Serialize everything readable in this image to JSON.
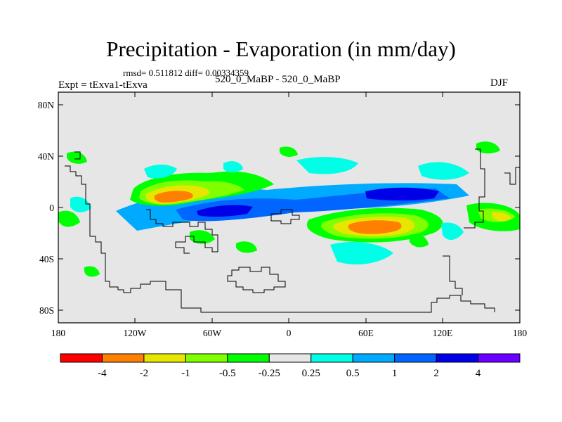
{
  "title": "Precipitation - Evaporation (in mm/day)",
  "stats": "rmsd= 0.511812 diff= 0.00334359",
  "left_label": "Expt = tExva1-tExva",
  "center_label": "520_0_MaBP - 520_0_MaBP",
  "season": "DJF",
  "lat_labels": [
    "80N",
    "40N",
    "0",
    "40S",
    "80S"
  ],
  "lon_labels": [
    "180",
    "120W",
    "60W",
    "0",
    "60E",
    "120E",
    "180"
  ],
  "colorbar": {
    "colors": [
      "#ff0000",
      "#ff8000",
      "#e6e600",
      "#80ff00",
      "#00ff00",
      "#e6e6e6",
      "#00ffe6",
      "#00aaff",
      "#0066ff",
      "#0000e6",
      "#6a00ff"
    ],
    "labels": [
      "-4",
      "-2",
      "-1",
      "-0.5",
      "-0.25",
      "0.25",
      "0.5",
      "1",
      "2",
      "4"
    ]
  },
  "colors": {
    "background": "#e6e6e6",
    "coastline": "#000000"
  }
}
